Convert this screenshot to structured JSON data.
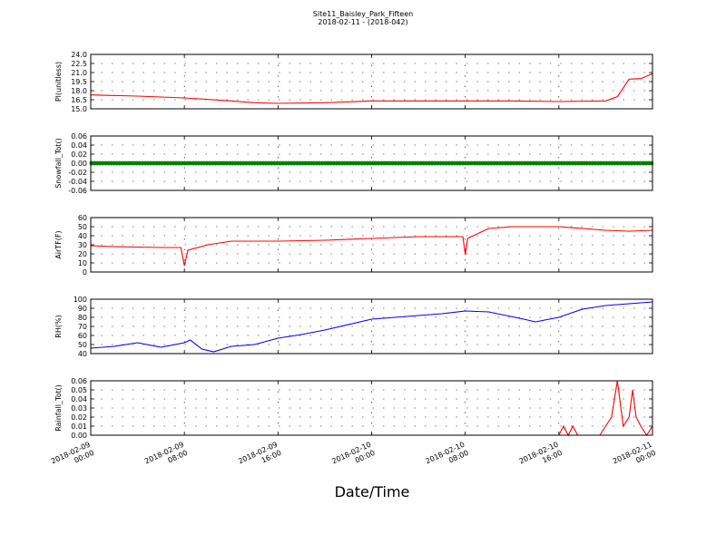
{
  "title": "Site11_Baisley_Park_Fifteen",
  "subtitle": "2018-02-11 - (2018-042)",
  "xlabel": "Date/Time",
  "x_tick_labels": [
    [
      "2018-02-09",
      "00:00"
    ],
    [
      "2018-02-09",
      "08:00"
    ],
    [
      "2018-02-09",
      "16:00"
    ],
    [
      "2018-02-10",
      "00:00"
    ],
    [
      "2018-02-10",
      "08:00"
    ],
    [
      "2018-02-10",
      "16:00"
    ],
    [
      "2018-02-11",
      "00:00"
    ]
  ],
  "colors": {
    "red": "#ff0000",
    "green": "#008000",
    "blue": "#0000ff"
  },
  "chart_data": [
    {
      "type": "line",
      "ylabel": "Pl(unitless)",
      "ylim": [
        15.0,
        24.0
      ],
      "yticks": [
        "15.0",
        "16.5",
        "18.0",
        "19.5",
        "21.0",
        "22.5",
        "24.0"
      ],
      "ytick_values": [
        15.0,
        16.5,
        18.0,
        19.5,
        21.0,
        22.5,
        24.0
      ],
      "grid": true,
      "color": "red",
      "x": [
        0,
        4,
        8,
        12,
        14,
        16,
        20,
        24,
        28,
        32,
        36,
        40,
        44,
        45,
        46,
        47,
        48
      ],
      "y": [
        17.3,
        17.1,
        16.8,
        16.3,
        16.0,
        15.9,
        16.0,
        16.3,
        16.3,
        16.3,
        16.3,
        16.2,
        16.3,
        17.0,
        19.9,
        20.0,
        20.8
      ]
    },
    {
      "type": "line",
      "ylabel": "Snowfall_Tot()",
      "ylim": [
        -0.06,
        0.06
      ],
      "yticks": [
        "-0.06",
        "-0.04",
        "-0.02",
        "0.00",
        "0.02",
        "0.04",
        "0.06"
      ],
      "ytick_values": [
        -0.06,
        -0.04,
        -0.02,
        0.0,
        0.02,
        0.04,
        0.06
      ],
      "grid": true,
      "color": "green",
      "markers": true,
      "x": [
        0,
        48
      ],
      "y": [
        0.0,
        0.0
      ]
    },
    {
      "type": "line",
      "ylabel": "AirTF(F)",
      "ylim": [
        0,
        60
      ],
      "yticks": [
        "0",
        "10",
        "20",
        "30",
        "40",
        "50",
        "60"
      ],
      "ytick_values": [
        0,
        10,
        20,
        30,
        40,
        50,
        60
      ],
      "grid": true,
      "color": "red",
      "x": [
        0,
        2,
        4,
        6,
        7.7,
        8,
        8.3,
        10,
        12,
        16,
        20,
        24,
        28,
        31.8,
        32,
        32.2,
        34,
        36,
        40,
        44,
        46,
        48
      ],
      "y": [
        29,
        28,
        27.5,
        27,
        27,
        7,
        24,
        30,
        34,
        34,
        35,
        37,
        39,
        39,
        19,
        37,
        48,
        50,
        50,
        46,
        45,
        46
      ]
    },
    {
      "type": "line",
      "ylabel": "RH(%)",
      "ylim": [
        40,
        100
      ],
      "yticks": [
        "40",
        "50",
        "60",
        "70",
        "80",
        "90",
        "100"
      ],
      "ytick_values": [
        40,
        50,
        60,
        70,
        80,
        90,
        100
      ],
      "grid": true,
      "color": "blue",
      "x": [
        0,
        2,
        4,
        6,
        8,
        8.5,
        9.5,
        10.5,
        12,
        14,
        16,
        18,
        20,
        24,
        26,
        30,
        32,
        34,
        37,
        38,
        40,
        42,
        44,
        48
      ],
      "y": [
        46,
        48,
        52,
        47,
        52,
        55,
        45,
        42,
        48,
        50,
        57,
        61,
        66,
        78,
        80,
        84,
        87,
        86,
        78,
        75,
        80,
        89,
        93,
        97
      ]
    },
    {
      "type": "line",
      "ylabel": "Rainfall_Tot()",
      "ylim": [
        0.0,
        0.06
      ],
      "yticks": [
        "0.00",
        "0.01",
        "0.02",
        "0.03",
        "0.04",
        "0.05",
        "0.06"
      ],
      "ytick_values": [
        0.0,
        0.01,
        0.02,
        0.03,
        0.04,
        0.05,
        0.06
      ],
      "grid": true,
      "color": "red",
      "x": [
        0,
        40,
        40.4,
        40.8,
        41.2,
        41.6,
        42,
        43.5,
        44,
        44.5,
        45,
        45.5,
        46,
        46.3,
        46.6,
        47,
        47.5,
        48
      ],
      "y": [
        0,
        0,
        0.01,
        0,
        0.01,
        0,
        0,
        0,
        0.01,
        0.02,
        0.06,
        0.01,
        0.02,
        0.05,
        0.02,
        0.01,
        0,
        0.01
      ]
    }
  ]
}
